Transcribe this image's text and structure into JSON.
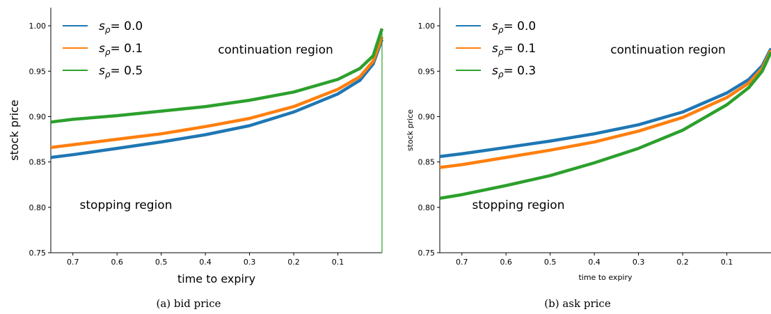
{
  "chart_data": [
    {
      "type": "line",
      "caption": "(a) bid price",
      "xlabel": "time to expiry",
      "ylabel": "stock price",
      "xlim": [
        0.75,
        0.0
      ],
      "ylim": [
        0.75,
        1.02
      ],
      "xticks": [
        "0.7",
        "0.6",
        "0.5",
        "0.4",
        "0.3",
        "0.2",
        "0.1"
      ],
      "yticks": [
        "0.75",
        "0.80",
        "0.85",
        "0.90",
        "0.95",
        "1.00"
      ],
      "region_labels": {
        "upper": "continuation region",
        "lower": "stopping region"
      },
      "legend_position": "upper-left",
      "series": [
        {
          "name": "sρ= 0.0",
          "legend_prefix": "s",
          "legend_sub": "ρ",
          "legend_suffix": "= 0.0",
          "color": "#1f77b4",
          "x": [
            0.75,
            0.7,
            0.6,
            0.5,
            0.4,
            0.3,
            0.2,
            0.1,
            0.05,
            0.02,
            0.0
          ],
          "y": [
            0.855,
            0.858,
            0.865,
            0.872,
            0.88,
            0.89,
            0.905,
            0.925,
            0.94,
            0.958,
            0.985
          ]
        },
        {
          "name": "sρ= 0.1",
          "legend_prefix": "s",
          "legend_sub": "ρ",
          "legend_suffix": "= 0.1",
          "color": "#ff7f0e",
          "x": [
            0.75,
            0.7,
            0.6,
            0.5,
            0.4,
            0.3,
            0.2,
            0.1,
            0.05,
            0.02,
            0.0
          ],
          "y": [
            0.866,
            0.869,
            0.875,
            0.881,
            0.889,
            0.898,
            0.911,
            0.93,
            0.944,
            0.961,
            0.988
          ]
        },
        {
          "name": "sρ= 0.5",
          "legend_prefix": "s",
          "legend_sub": "ρ",
          "legend_suffix": "= 0.5",
          "color": "#2ca02c",
          "x": [
            0.75,
            0.7,
            0.6,
            0.5,
            0.4,
            0.3,
            0.2,
            0.1,
            0.05,
            0.02,
            0.0
          ],
          "y": [
            0.894,
            0.897,
            0.901,
            0.906,
            0.911,
            0.918,
            0.927,
            0.941,
            0.953,
            0.967,
            0.997
          ]
        }
      ]
    },
    {
      "type": "line",
      "caption": "(b) ask price",
      "xlabel": "time to expiry",
      "ylabel": "stock price",
      "xlim": [
        0.75,
        0.0
      ],
      "ylim": [
        0.75,
        1.02
      ],
      "xticks": [
        "0.7",
        "0.6",
        "0.5",
        "0.4",
        "0.3",
        "0.2",
        "0.1"
      ],
      "yticks": [
        "0.75",
        "0.80",
        "0.85",
        "0.90",
        "0.95",
        "1.00"
      ],
      "region_labels": {
        "upper": "continuation region",
        "lower": "stopping region"
      },
      "legend_position": "upper-left",
      "series": [
        {
          "name": "sρ= 0.0",
          "legend_prefix": "s",
          "legend_sub": "ρ",
          "legend_suffix": "= 0.0",
          "color": "#1f77b4",
          "x": [
            0.75,
            0.7,
            0.6,
            0.5,
            0.4,
            0.3,
            0.2,
            0.1,
            0.05,
            0.02,
            0.0
          ],
          "y": [
            0.856,
            0.859,
            0.866,
            0.873,
            0.881,
            0.891,
            0.905,
            0.926,
            0.941,
            0.956,
            0.975
          ]
        },
        {
          "name": "sρ= 0.1",
          "legend_prefix": "s",
          "legend_sub": "ρ",
          "legend_suffix": "= 0.1",
          "color": "#ff7f0e",
          "x": [
            0.75,
            0.7,
            0.6,
            0.5,
            0.4,
            0.3,
            0.2,
            0.1,
            0.05,
            0.02,
            0.0
          ],
          "y": [
            0.844,
            0.847,
            0.855,
            0.863,
            0.872,
            0.884,
            0.899,
            0.921,
            0.937,
            0.953,
            0.973
          ]
        },
        {
          "name": "sρ= 0.3",
          "legend_prefix": "s",
          "legend_sub": "ρ",
          "legend_suffix": "= 0.3",
          "color": "#2ca02c",
          "x": [
            0.75,
            0.7,
            0.6,
            0.5,
            0.4,
            0.3,
            0.2,
            0.1,
            0.05,
            0.02,
            0.0
          ],
          "y": [
            0.81,
            0.814,
            0.824,
            0.835,
            0.849,
            0.865,
            0.885,
            0.913,
            0.932,
            0.95,
            0.971
          ]
        }
      ]
    }
  ]
}
